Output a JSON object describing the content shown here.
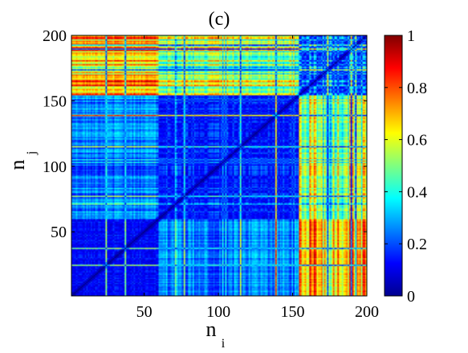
{
  "chart_data": {
    "type": "heatmap",
    "title": "(c)",
    "xlabel": "n",
    "xlabel_sub": "i",
    "ylabel": "n",
    "ylabel_sub": "j",
    "xlim": [
      1,
      200
    ],
    "ylim": [
      1,
      200
    ],
    "xticks": [
      50,
      100,
      150,
      200
    ],
    "yticks": [
      50,
      100,
      150,
      200
    ],
    "colorbar": {
      "range": [
        0,
        1
      ],
      "ticks": [
        0,
        0.2,
        0.4,
        0.6,
        0.8,
        1
      ],
      "tick_labels": [
        "0",
        "0.2",
        "0.4",
        "0.6",
        "0.8",
        "1"
      ],
      "colormap": "jet",
      "position": "right"
    },
    "matrix": {
      "size": 200,
      "symmetric": true,
      "diagonal_value": 0,
      "description_of_structure": "pairwise similarity matrix; low values (blue) cluster for n<60 and 60-150 block, high values (red) where one index > 155 and the other < 60"
    },
    "grid": false
  }
}
